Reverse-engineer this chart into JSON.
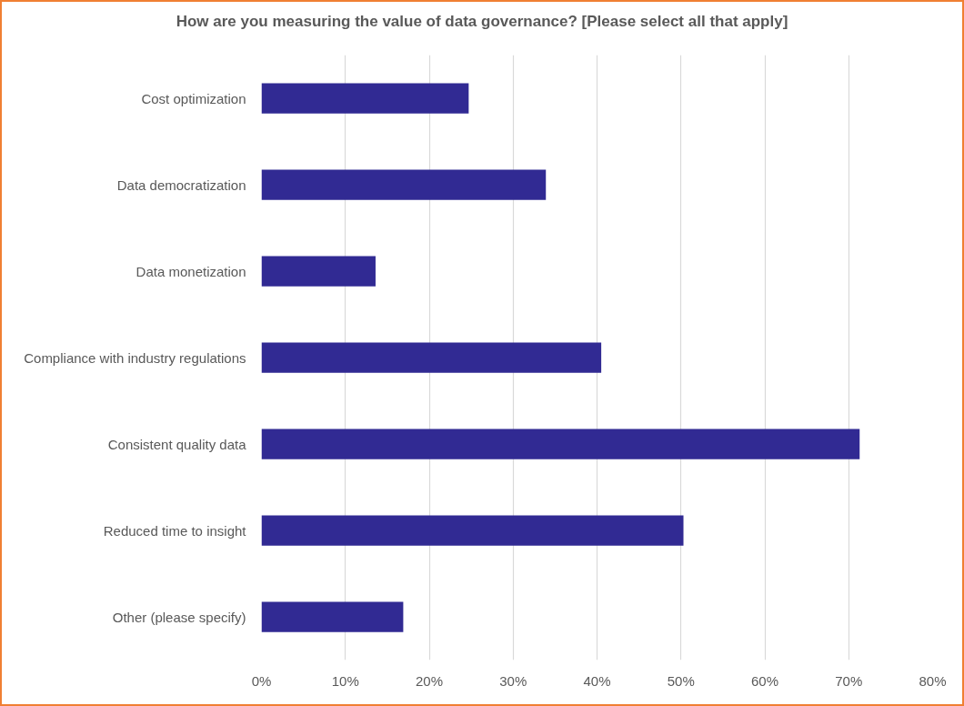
{
  "chart_data": {
    "type": "bar",
    "orientation": "horizontal",
    "title": "How are you measuring the value of data governance? [Please select all that apply]",
    "categories": [
      "Cost optimization",
      "Data democratization",
      "Data monetization",
      "Compliance with industry regulations",
      "Consistent quality data",
      "Reduced time to insight",
      "Other (please specify)"
    ],
    "values": [
      24.7,
      33.9,
      13.6,
      40.5,
      71.3,
      50.3,
      16.9
    ],
    "color": "#312a93",
    "xlim": [
      0,
      80
    ],
    "xticks": [
      {
        "value": 0,
        "label": "0%"
      },
      {
        "value": 10,
        "label": "10%"
      },
      {
        "value": 20,
        "label": "20%"
      },
      {
        "value": 30,
        "label": "30%"
      },
      {
        "value": 40,
        "label": "40%"
      },
      {
        "value": 50,
        "label": "50%"
      },
      {
        "value": 60,
        "label": "60%"
      },
      {
        "value": 70,
        "label": "70%"
      },
      {
        "value": 80,
        "label": "80%"
      }
    ],
    "grid": "x"
  }
}
